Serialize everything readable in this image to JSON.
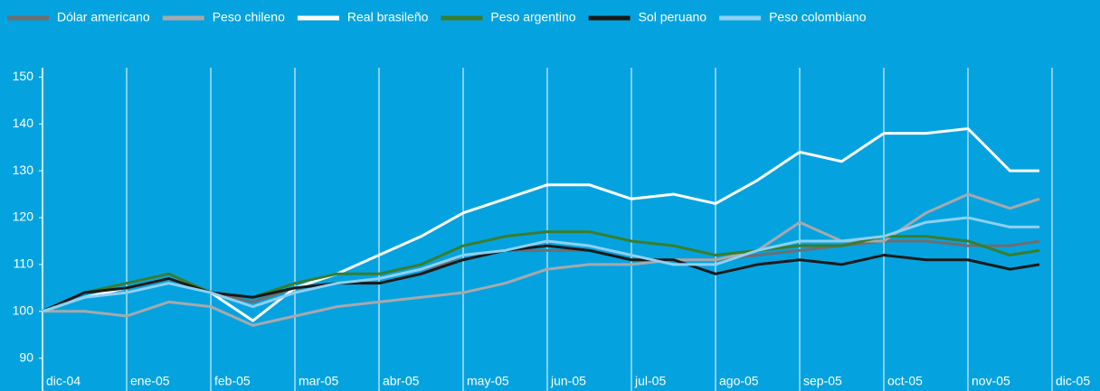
{
  "chart_data": {
    "type": "line",
    "x": [
      0,
      0.5,
      1,
      1.5,
      2,
      2.5,
      3,
      3.5,
      4,
      4.5,
      5,
      5.5,
      6,
      6.5,
      7,
      7.5,
      8,
      8.5,
      9,
      9.5,
      10,
      10.5,
      11,
      11.5,
      11.85
    ],
    "series": [
      {
        "name": "Dólar americano",
        "color": "#6d6e71",
        "values": [
          100,
          104,
          105,
          107,
          104,
          102,
          105,
          106,
          106,
          108,
          112,
          113,
          113,
          113,
          111,
          111,
          111,
          112,
          113,
          114,
          115,
          115,
          114,
          114,
          115
        ]
      },
      {
        "name": "Peso chileno",
        "color": "#a7a9ac",
        "values": [
          100,
          100,
          99,
          102,
          101,
          97,
          99,
          101,
          102,
          103,
          104,
          106,
          109,
          110,
          110,
          111,
          111,
          113,
          119,
          115,
          115,
          121,
          125,
          122,
          124
        ]
      },
      {
        "name": "Real brasileño",
        "color": "#ffffff",
        "values": [
          100,
          103,
          105,
          107,
          104,
          98,
          105,
          108,
          112,
          116,
          121,
          124,
          127,
          127,
          124,
          125,
          123,
          128,
          134,
          132,
          138,
          138,
          139,
          130,
          130
        ]
      },
      {
        "name": "Peso argentino",
        "color": "#3a7d2c",
        "values": [
          100,
          104,
          106,
          108,
          104,
          103,
          106,
          108,
          108,
          110,
          114,
          116,
          117,
          117,
          115,
          114,
          112,
          113,
          114,
          114,
          116,
          116,
          115,
          112,
          113
        ]
      },
      {
        "name": "Sol peruano",
        "color": "#1a1a1a",
        "values": [
          100,
          104,
          105,
          107,
          104,
          103,
          105,
          106,
          106,
          108,
          111,
          113,
          114,
          113,
          111,
          111,
          108,
          110,
          111,
          110,
          112,
          111,
          111,
          109,
          110
        ]
      },
      {
        "name": "Peso colombiano",
        "color": "#8fd0f2",
        "values": [
          100,
          103,
          104,
          106,
          104,
          101,
          104,
          106,
          107,
          109,
          112,
          113,
          115,
          114,
          112,
          110,
          110,
          113,
          115,
          115,
          116,
          119,
          120,
          118,
          118
        ]
      }
    ],
    "xlim": [
      0,
      12
    ],
    "xticks": [
      {
        "value": 0,
        "label": "dic-04"
      },
      {
        "value": 1,
        "label": "ene-05"
      },
      {
        "value": 2,
        "label": "feb-05"
      },
      {
        "value": 3,
        "label": "mar-05"
      },
      {
        "value": 4,
        "label": "abr-05"
      },
      {
        "value": 5,
        "label": "may-05"
      },
      {
        "value": 6,
        "label": "jun-05"
      },
      {
        "value": 7,
        "label": "jul-05"
      },
      {
        "value": 8,
        "label": "ago-05"
      },
      {
        "value": 9,
        "label": "sep-05"
      },
      {
        "value": 10,
        "label": "oct-05"
      },
      {
        "value": 11,
        "label": "nov-05"
      },
      {
        "value": 12,
        "label": "dic-05"
      }
    ],
    "ylim": [
      83,
      152
    ],
    "yticks": [
      90,
      100,
      110,
      120,
      130,
      140,
      150
    ],
    "grid": true
  }
}
